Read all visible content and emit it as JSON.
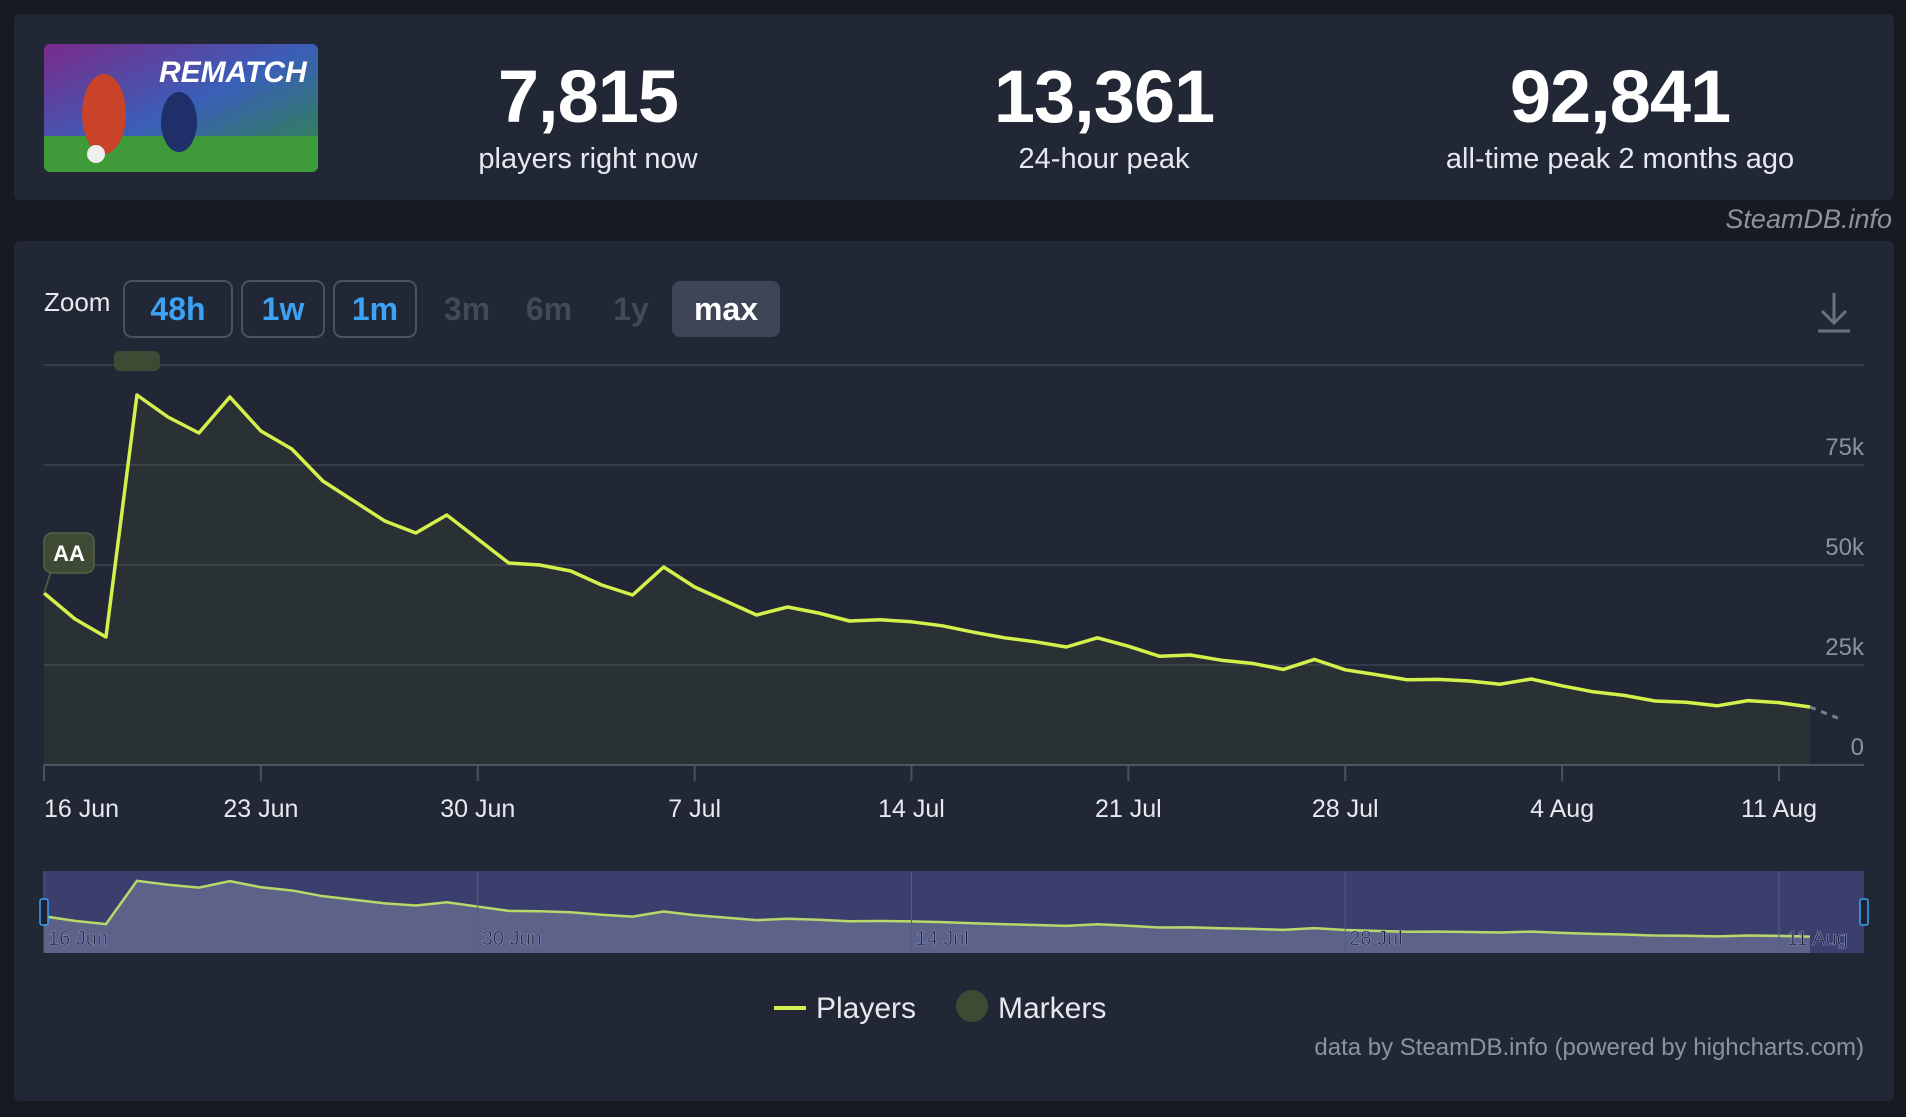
{
  "stats": [
    {
      "value": "7,815",
      "label": "players right now"
    },
    {
      "value": "13,361",
      "label": "24-hour peak"
    },
    {
      "value": "92,841",
      "label": "all-time peak 2 months ago"
    }
  ],
  "game_logo_text": "REMATCH",
  "credit_top": "SteamDB.info",
  "zoom": {
    "label": "Zoom",
    "buttons": [
      {
        "label": "48h",
        "state": "enabled"
      },
      {
        "label": "1w",
        "state": "enabled"
      },
      {
        "label": "1m",
        "state": "enabled"
      },
      {
        "label": "3m",
        "state": "disabled"
      },
      {
        "label": "6m",
        "state": "disabled"
      },
      {
        "label": "1y",
        "state": "disabled"
      },
      {
        "label": "max",
        "state": "selected"
      }
    ]
  },
  "download_icon": "download-icon",
  "credit_bottom": "data by SteamDB.info (powered by highcharts.com)",
  "colors": {
    "line": "#d4f04a",
    "background": "#212734",
    "marker": "#3f4a34",
    "accent": "#3ba2f5",
    "navigator_mask": "#3a3f6e"
  },
  "chart_data": {
    "type": "line",
    "x_axis": {
      "type": "date",
      "start": "2025-06-16",
      "end": "2025-08-14",
      "ticks": [
        "2025-06-16",
        "2025-06-23",
        "2025-06-30",
        "2025-07-07",
        "2025-07-14",
        "2025-07-21",
        "2025-07-28",
        "2025-08-04",
        "2025-08-11"
      ],
      "tick_labels": [
        "16 Jun",
        "23 Jun",
        "30 Jun",
        "7 Jul",
        "14 Jul",
        "21 Jul",
        "28 Jul",
        "4 Aug",
        "11 Aug"
      ]
    },
    "y_axis": {
      "range": [
        0,
        100000
      ],
      "ticks": [
        0,
        25000,
        50000,
        75000
      ],
      "tick_labels": [
        "0",
        "25k",
        "50k",
        "75k"
      ],
      "position": "right",
      "grid": true
    },
    "series": [
      {
        "name": "Players",
        "x": [
          "2025-06-16",
          "2025-06-17",
          "2025-06-18",
          "2025-06-19",
          "2025-06-20",
          "2025-06-21",
          "2025-06-22",
          "2025-06-23",
          "2025-06-24",
          "2025-06-25",
          "2025-06-26",
          "2025-06-27",
          "2025-06-28",
          "2025-06-29",
          "2025-06-30",
          "2025-07-01",
          "2025-07-02",
          "2025-07-03",
          "2025-07-04",
          "2025-07-05",
          "2025-07-06",
          "2025-07-07",
          "2025-07-08",
          "2025-07-09",
          "2025-07-10",
          "2025-07-11",
          "2025-07-12",
          "2025-07-13",
          "2025-07-14",
          "2025-07-15",
          "2025-07-16",
          "2025-07-17",
          "2025-07-18",
          "2025-07-19",
          "2025-07-20",
          "2025-07-21",
          "2025-07-22",
          "2025-07-23",
          "2025-07-24",
          "2025-07-25",
          "2025-07-26",
          "2025-07-27",
          "2025-07-28",
          "2025-07-29",
          "2025-07-30",
          "2025-07-31",
          "2025-08-01",
          "2025-08-02",
          "2025-08-03",
          "2025-08-04",
          "2025-08-05",
          "2025-08-06",
          "2025-08-07",
          "2025-08-08",
          "2025-08-09",
          "2025-08-10",
          "2025-08-11",
          "2025-08-12"
        ],
        "y": [
          43000,
          36500,
          32000,
          92500,
          87000,
          83000,
          92000,
          83500,
          79000,
          71000,
          66000,
          61000,
          58000,
          62500,
          56500,
          50500,
          50000,
          48500,
          45000,
          42500,
          49500,
          44500,
          41000,
          37500,
          39500,
          38000,
          36000,
          36300,
          35800,
          34800,
          33200,
          31800,
          30800,
          29500,
          31800,
          29700,
          27200,
          27500,
          26200,
          25400,
          23900,
          26400,
          23800,
          22600,
          21300,
          21400,
          21000,
          20200,
          21500,
          19800,
          18300,
          17400,
          16000,
          15700,
          14800,
          16100,
          15600,
          14500
        ]
      },
      {
        "name": "Players (incomplete)",
        "x": [
          "2025-08-12",
          "2025-08-13"
        ],
        "y": [
          14500,
          11400
        ]
      }
    ],
    "markers": [
      {
        "label": "AA",
        "x": "2025-06-16"
      },
      {
        "label": "",
        "x": "2025-06-19"
      }
    ],
    "legend": {
      "items": [
        "Players",
        "Markers"
      ],
      "placement": "bottom-center"
    },
    "navigator": {
      "tick_labels": [
        "16 Jun",
        "30 Jun",
        "14 Jul",
        "28 Jul",
        "11 Aug"
      ]
    }
  }
}
